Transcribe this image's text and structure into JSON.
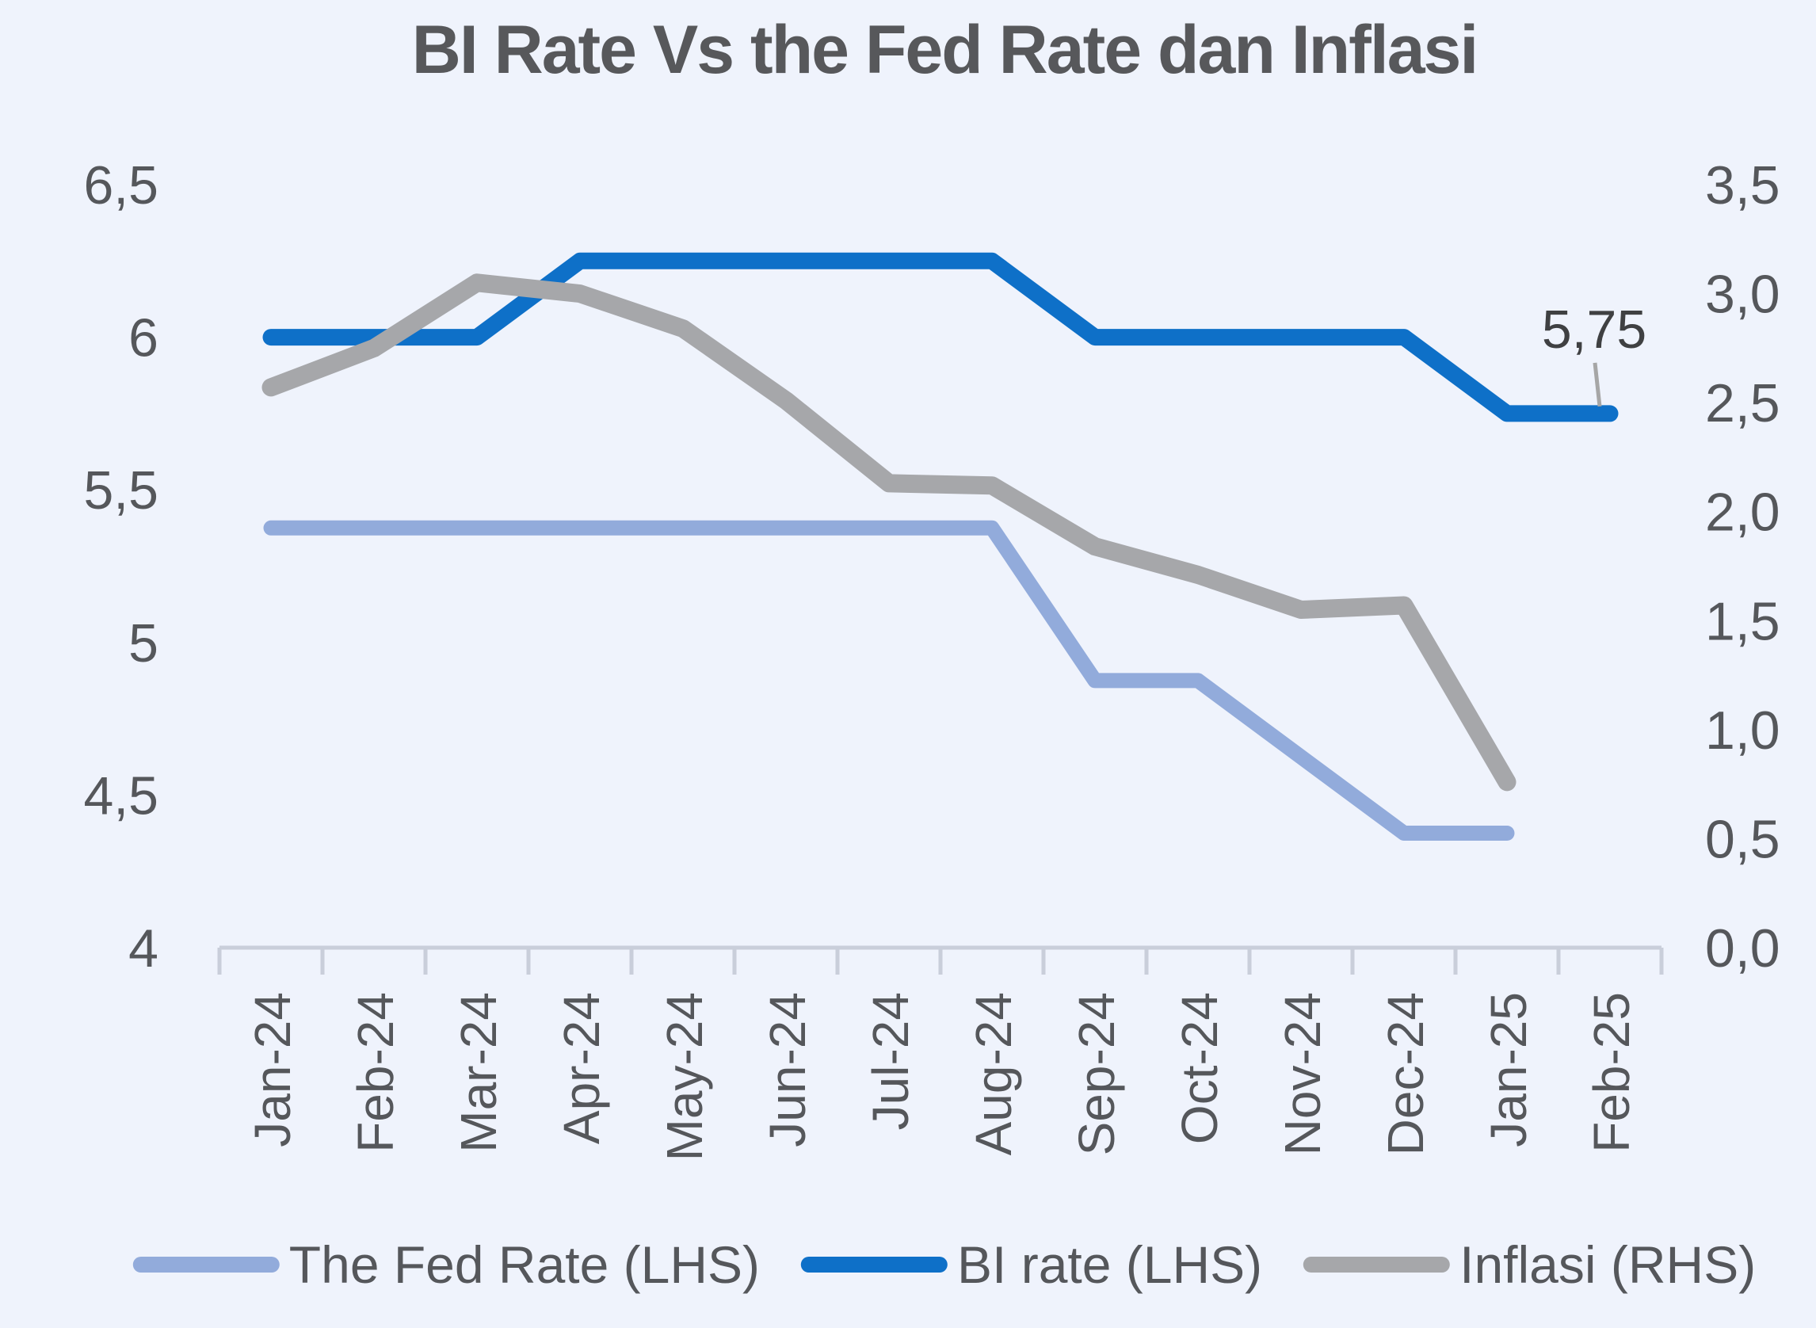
{
  "chart_data": {
    "type": "line",
    "title": "BI Rate Vs the Fed Rate dan Inflasi",
    "categories": [
      "Jan-24",
      "Feb-24",
      "Mar-24",
      "Apr-24",
      "May-24",
      "Jun-24",
      "Jul-24",
      "Aug-24",
      "Sep-24",
      "Oct-24",
      "Nov-24",
      "Dec-24",
      "Jan-25",
      "Feb-25"
    ],
    "series": [
      {
        "name": "The Fed Rate (LHS)",
        "axis": "left",
        "color": "#92ABDB",
        "values": [
          5.375,
          5.375,
          5.375,
          5.375,
          5.375,
          5.375,
          5.375,
          5.375,
          4.875,
          4.875,
          4.625,
          4.375,
          4.375,
          null
        ]
      },
      {
        "name": "BI rate (LHS)",
        "axis": "left",
        "color": "#0E70C8",
        "values": [
          6.0,
          6.0,
          6.0,
          6.25,
          6.25,
          6.25,
          6.25,
          6.25,
          6.0,
          6.0,
          6.0,
          6.0,
          5.75,
          5.75
        ]
      },
      {
        "name": "Inflasi (RHS)",
        "axis": "right",
        "color": "#A6A7AA",
        "values": [
          2.57,
          2.75,
          3.05,
          3.0,
          2.84,
          2.51,
          2.13,
          2.12,
          1.84,
          1.71,
          1.55,
          1.57,
          0.76,
          null
        ]
      }
    ],
    "left_axis": {
      "min": 4,
      "max": 6.5,
      "ticks": [
        {
          "label": "6,5",
          "value": 6.5
        },
        {
          "label": "6",
          "value": 6.0
        },
        {
          "label": "5,5",
          "value": 5.5
        },
        {
          "label": "5",
          "value": 5.0
        },
        {
          "label": "4,5",
          "value": 4.5
        },
        {
          "label": "4",
          "value": 4.0
        }
      ]
    },
    "right_axis": {
      "min": 0,
      "max": 3.5,
      "ticks": [
        {
          "label": "3,5",
          "value": 3.5
        },
        {
          "label": "3,0",
          "value": 3.0
        },
        {
          "label": "2,5",
          "value": 2.5
        },
        {
          "label": "2,0",
          "value": 2.0
        },
        {
          "label": "1,5",
          "value": 1.5
        },
        {
          "label": "1,0",
          "value": 1.0
        },
        {
          "label": "0,5",
          "value": 0.5
        },
        {
          "label": "0,0",
          "value": 0.0
        }
      ]
    },
    "annotation": {
      "text": "5,75",
      "series": "BI rate (LHS)",
      "category": "Feb-25",
      "value": 5.75
    },
    "legend_position": "bottom",
    "grid": false,
    "colors": {
      "background": "#EFF3FC",
      "axis_line": "#C9CEDA",
      "text": "#55575B",
      "data_label": "#3F4042",
      "leader_line": "#A6A6A6"
    }
  }
}
